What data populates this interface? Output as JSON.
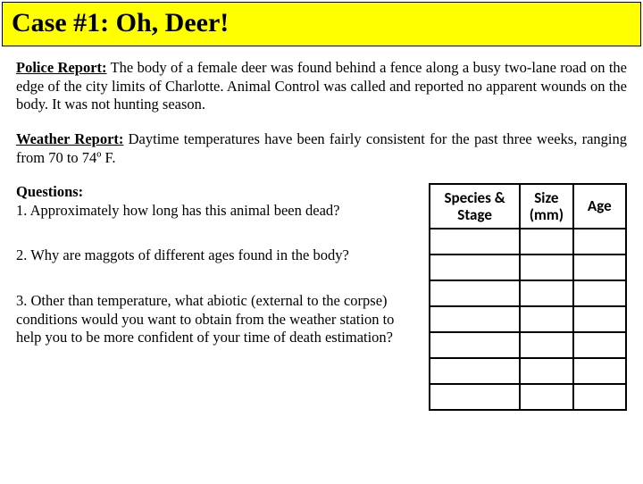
{
  "title": "Case #1: Oh, Deer!",
  "policeReport": {
    "label": "Police Report:",
    "text": " The body of a female deer was found behind a fence along a busy two-lane road on the edge of the city limits of Charlotte. Animal Control was called and reported no apparent wounds on the body. It was not hunting season."
  },
  "weatherReport": {
    "label": "Weather Report:",
    "text": " Daytime temperatures have been fairly consistent for the past three weeks, ranging from 70 to 74º F."
  },
  "questions": {
    "label": "Questions:",
    "q1": "1. Approximately how long has this animal been dead?",
    "q2": "2. Why are maggots of different ages found in the body?",
    "q3": "3. Other than temperature, what abiotic (external to the corpse) conditions would you want to obtain from the weather station to help you to be more confident of your time of death estimation?"
  },
  "table": {
    "headers": [
      "Species & Stage",
      "Size (mm)",
      "Age"
    ],
    "rowCount": 7,
    "borderColor": "#000000",
    "headerFontFamily": "Calibri",
    "headerFontSize": 17
  },
  "colors": {
    "titleBg": "#ffff00",
    "titleBorder": "#000000",
    "pageBg": "#ffffff",
    "text": "#000000"
  }
}
